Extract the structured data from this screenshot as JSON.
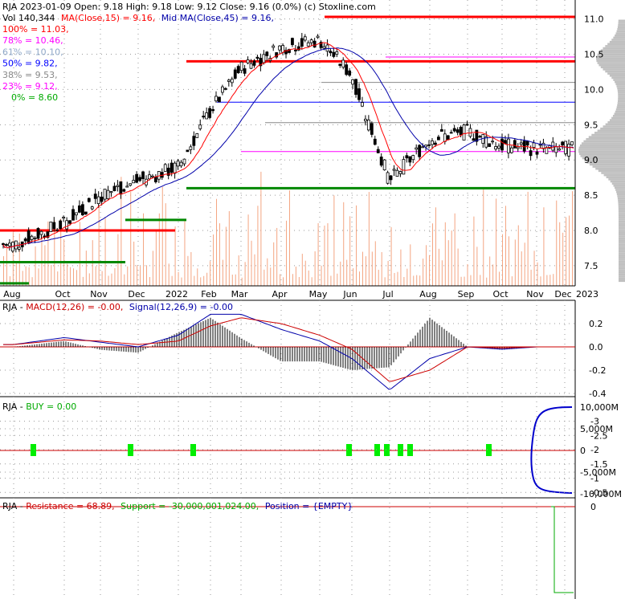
{
  "header": {
    "line1": "RJA  2023-01-09 Open: 9.18  High: 9.18  Low: 9.12  Close: 9.16 (0.0%)  (c) Stoxline.com",
    "vol": "Vol 140,344",
    "ma15": "MA(Close,15) = 9.16,",
    "ma45": "Mid MA(Close,45) = 9.16,"
  },
  "fib_levels": [
    {
      "label": "100% = 11.03,",
      "color": "#ff0000"
    },
    {
      "label": "78% = 10.46,",
      "color": "#ff00ff"
    },
    {
      "label": "61% = 10.10,",
      "color": "#8fa8c8"
    },
    {
      "label": "50% = 9.82,",
      "color": "#0000ff"
    },
    {
      "label": "38% = 9.53,",
      "color": "#888888"
    },
    {
      "label": "23% = 9.12,",
      "color": "#ff00ff"
    },
    {
      "label": "0% = 8.60",
      "color": "#00aa00"
    }
  ],
  "x_axis_labels": [
    "Aug",
    "Oct",
    "Nov",
    "Dec",
    "2022",
    "Feb",
    "Mar",
    "Apr",
    "May",
    "Jun",
    "Jul",
    "Aug",
    "Sep",
    "Oct",
    "Nov",
    "Dec",
    "2023"
  ],
  "price_axis": [
    "11.0",
    "10.5",
    "10.0",
    "9.5",
    "9.0",
    "8.5",
    "8.0",
    "7.5"
  ],
  "macd_panel": {
    "title_prefix": "RJA - ",
    "macd_label": "MACD(12,26) = -0.00,",
    "signal_label": "Signal(12,26,9) = -0.00",
    "axis": [
      "0.2",
      "0.0",
      "-0.2",
      "-0.4"
    ]
  },
  "buy_panel": {
    "title_prefix": "RJA - ",
    "buy_label": "BUY = 0.00",
    "axis": [
      "10,000M",
      "5,000M",
      "0",
      "-5,000M",
      "-10,000M"
    ]
  },
  "resistance_panel": {
    "title_prefix": "RJA - ",
    "resistance_label": "Resistance = 68.89,",
    "support_label": "Support = -30,000,001,024.00,",
    "position_label": "Position = {EMPTY}",
    "axis": [
      "0",
      "-0.5",
      "-1",
      "-1.5",
      "-2",
      "-2.5",
      "-3"
    ]
  },
  "colors": {
    "up_candle": "#000000",
    "ma15": "#ff0000",
    "ma45": "#0000aa",
    "volume": "#f4a582",
    "support": "#008800",
    "resistance": "#ff0000",
    "buy_marker": "#00ee00",
    "macd_line": "#0000aa",
    "signal_line": "#cc0000"
  },
  "chart_data": [
    {
      "type": "line",
      "name": "price",
      "x": [
        "Aug",
        "Oct",
        "Nov",
        "Dec",
        "2022",
        "Feb",
        "Mar",
        "Apr",
        "May",
        "Jun",
        "Jul",
        "Aug",
        "Sep",
        "Oct",
        "Nov",
        "Dec",
        "2023"
      ],
      "series": [
        {
          "name": "Close",
          "values": [
            7.8,
            8.1,
            8.5,
            8.7,
            8.9,
            9.7,
            10.3,
            10.6,
            10.7,
            10.2,
            8.7,
            9.3,
            9.4,
            9.2,
            9.16,
            9.16,
            9.16
          ]
        }
      ],
      "ylim": [
        7.2,
        11.1
      ],
      "last_bar": {
        "date": "2023-01-09",
        "open": 9.18,
        "high": 9.18,
        "low": 9.12,
        "close": 9.16,
        "volume": 140344
      }
    },
    {
      "type": "line",
      "name": "MACD",
      "series": [
        {
          "name": "MACD(12,26)",
          "values": [
            0.02,
            0.08,
            0.04,
            0.0,
            0.1,
            0.28,
            0.28,
            0.15,
            0.05,
            -0.1,
            -0.37,
            -0.1,
            0.0,
            -0.02,
            -0.0,
            -0.0,
            -0.0
          ]
        },
        {
          "name": "Signal(12,26,9)",
          "values": [
            0.02,
            0.06,
            0.05,
            0.02,
            0.05,
            0.18,
            0.25,
            0.2,
            0.1,
            -0.02,
            -0.3,
            -0.2,
            0.0,
            -0.01,
            -0.0,
            -0.0,
            -0.0
          ]
        }
      ],
      "ylim": [
        -0.45,
        0.3
      ]
    },
    {
      "type": "scatter",
      "name": "BUY",
      "values": [
        0.0
      ],
      "ylim": [
        -10000,
        10000
      ]
    },
    {
      "type": "line",
      "name": "Resistance / Support",
      "resistance": 68.89,
      "support": -30000001024.0,
      "ylim": [
        -3,
        0
      ]
    }
  ]
}
